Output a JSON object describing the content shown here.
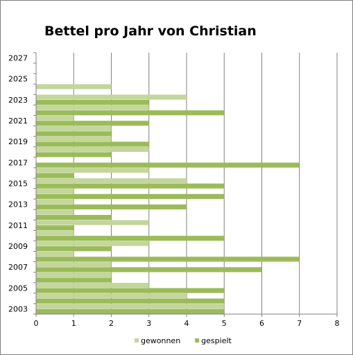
{
  "chart_data": {
    "type": "bar",
    "orientation": "horizontal",
    "title": "Bettel pro Jahr von Christian",
    "categories": [
      2003,
      2004,
      2005,
      2006,
      2007,
      2008,
      2009,
      2010,
      2011,
      2012,
      2013,
      2014,
      2015,
      2016,
      2017,
      2018,
      2019,
      2020,
      2021,
      2022,
      2023,
      2024,
      2025,
      2026,
      2027
    ],
    "category_tick_labels": [
      "2003",
      "2005",
      "2007",
      "2009",
      "2011",
      "2013",
      "2015",
      "2017",
      "2019",
      "2021",
      "2023",
      "2025",
      "2027"
    ],
    "series": [
      {
        "name": "gewonnen",
        "color": "#c3d69b",
        "values": [
          5,
          4,
          3,
          2,
          2,
          1,
          3,
          1,
          3,
          1,
          1,
          1,
          4,
          3,
          0,
          3,
          2,
          2,
          1,
          3,
          4,
          2,
          null,
          null,
          null
        ]
      },
      {
        "name": "gespielt",
        "color": "#9bbb59",
        "values": [
          5,
          5,
          5,
          2,
          6,
          7,
          2,
          5,
          1,
          2,
          4,
          5,
          5,
          1,
          7,
          2,
          3,
          2,
          3,
          5,
          3,
          null,
          null,
          null,
          null
        ]
      }
    ],
    "xlim": [
      0,
      8
    ],
    "x_ticks": [
      0,
      1,
      2,
      3,
      4,
      5,
      6,
      7,
      8
    ],
    "grid": "vertical",
    "legend": "bottom"
  }
}
